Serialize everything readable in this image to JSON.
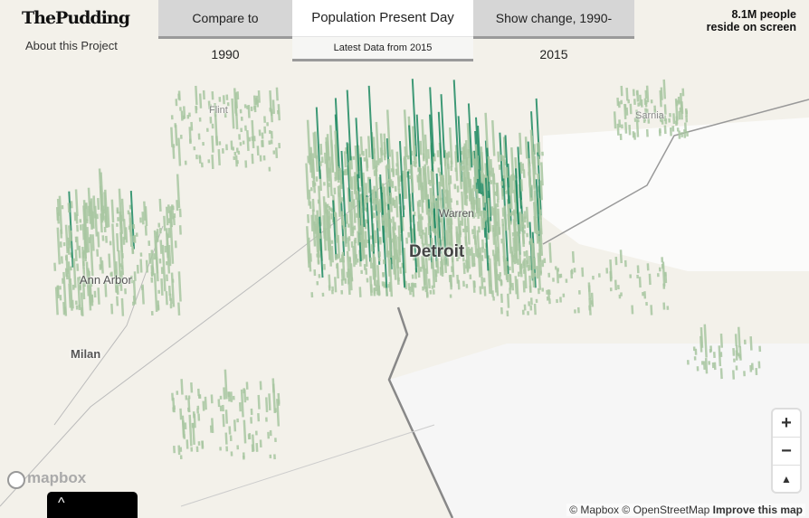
{
  "header": {
    "logo": "ThePudding",
    "about_link": "About this Project"
  },
  "tabs": [
    {
      "label": "Compare to 1990",
      "active": false
    },
    {
      "label": "Population Present Day",
      "active": true,
      "subtitle": "Latest Data from 2015"
    },
    {
      "label": "Show change, 1990-2015",
      "active": false
    }
  ],
  "population_count": {
    "line1": "8.1M people",
    "line2": "reside on screen"
  },
  "map": {
    "labels": [
      {
        "name": "Detroit"
      },
      {
        "name": "Warren"
      },
      {
        "name": "Ann Arbor"
      },
      {
        "name": "Milan"
      },
      {
        "name": "Flint"
      },
      {
        "name": "Sarnia"
      }
    ],
    "colors": {
      "bar": "#1f8a62",
      "bar_light": "#a9c7a2",
      "land": "#f3f1ea",
      "water": "#ffffff"
    }
  },
  "controls": {
    "zoom_in": "+",
    "zoom_out": "−",
    "compass": "▲"
  },
  "attribution": {
    "mapbox": "© Mapbox",
    "osm": "© OpenStreetMap",
    "improve": "Improve this map"
  },
  "mapbox_logo": "mapbox",
  "drawer_toggle": "^"
}
